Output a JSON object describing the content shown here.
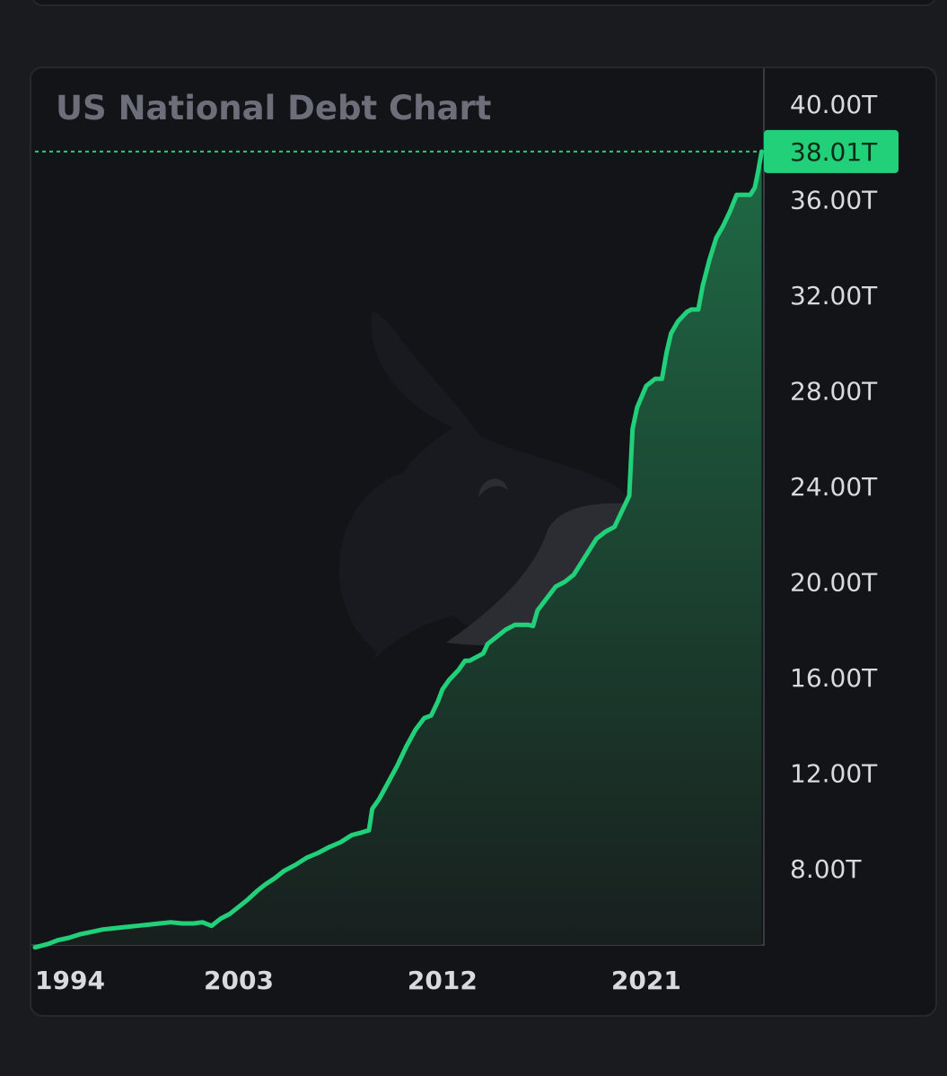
{
  "chart_data": {
    "type": "area",
    "title": "US National Debt Chart",
    "xlabel": "",
    "ylabel": "",
    "x_tick_labels": [
      "1994",
      "2003",
      "2012",
      "2021"
    ],
    "x_tick_values": [
      1994,
      2003,
      2012,
      2021
    ],
    "y_tick_labels": [
      "8.00T",
      "12.00T",
      "16.00T",
      "20.00T",
      "24.00T",
      "28.00T",
      "32.00T",
      "36.00T",
      "40.00T"
    ],
    "y_tick_values": [
      8,
      12,
      16,
      20,
      24,
      28,
      32,
      36,
      40
    ],
    "xlim": [
      1994,
      2026.2
    ],
    "ylim": [
      4.8,
      41.5
    ],
    "units": "trillion USD",
    "last_value": 38.01,
    "last_value_label": "38.01T",
    "grid": false,
    "colors": {
      "line": "#22d07a",
      "area_top": "#1f6a45",
      "area_bottom": "#181f1e",
      "badge": "#22d07a",
      "background": "#131418"
    },
    "series": [
      {
        "x": [
          1994.0,
          1994.6,
          1995.0,
          1995.5,
          1996.0,
          1996.5,
          1997.0,
          1997.5,
          1998.0,
          1998.5,
          1999.0,
          1999.5,
          2000.0,
          2000.5,
          2001.0,
          2001.4,
          2001.8,
          2002.2,
          2002.6,
          2003.0,
          2003.4,
          2003.8,
          2004.2,
          2004.6,
          2005.0,
          2005.5,
          2006.0,
          2006.5,
          2007.0,
          2007.5,
          2008.0,
          2008.4,
          2008.75,
          2008.9,
          2009.2,
          2009.6,
          2010.0,
          2010.4,
          2010.8,
          2011.2,
          2011.5,
          2011.8,
          2012.0,
          2012.3,
          2012.7,
          2013.0,
          2013.2,
          2013.8,
          2014.0,
          2014.4,
          2014.8,
          2015.2,
          2015.8,
          2016.0,
          2016.2,
          2016.6,
          2017.0,
          2017.4,
          2017.8,
          2018.0,
          2018.4,
          2018.8,
          2019.2,
          2019.6,
          2019.9,
          2020.1,
          2020.25,
          2020.4,
          2020.6,
          2021.0,
          2021.4,
          2021.7,
          2021.9,
          2022.1,
          2022.4,
          2022.8,
          2023.0,
          2023.3,
          2023.5,
          2023.8,
          2024.1,
          2024.4,
          2024.7,
          2025.0,
          2025.4,
          2025.6,
          2025.8,
          2025.95,
          2026.1
        ],
        "y": [
          4.7,
          4.85,
          5.0,
          5.1,
          5.25,
          5.35,
          5.45,
          5.5,
          5.55,
          5.6,
          5.65,
          5.7,
          5.75,
          5.7,
          5.7,
          5.75,
          5.6,
          5.9,
          6.1,
          6.4,
          6.7,
          7.05,
          7.35,
          7.6,
          7.9,
          8.15,
          8.45,
          8.65,
          8.9,
          9.1,
          9.4,
          9.5,
          9.6,
          10.5,
          10.9,
          11.6,
          12.3,
          13.1,
          13.8,
          14.3,
          14.4,
          15.0,
          15.5,
          15.9,
          16.3,
          16.7,
          16.7,
          17.0,
          17.4,
          17.7,
          18.0,
          18.2,
          18.2,
          18.15,
          18.8,
          19.3,
          19.8,
          20.0,
          20.3,
          20.6,
          21.2,
          21.8,
          22.1,
          22.3,
          22.9,
          23.3,
          23.6,
          26.4,
          27.3,
          28.2,
          28.5,
          28.5,
          29.6,
          30.4,
          30.9,
          31.3,
          31.4,
          31.4,
          32.4,
          33.5,
          34.4,
          34.9,
          35.5,
          36.2,
          36.2,
          36.2,
          36.5,
          37.2,
          38.01
        ]
      }
    ]
  }
}
